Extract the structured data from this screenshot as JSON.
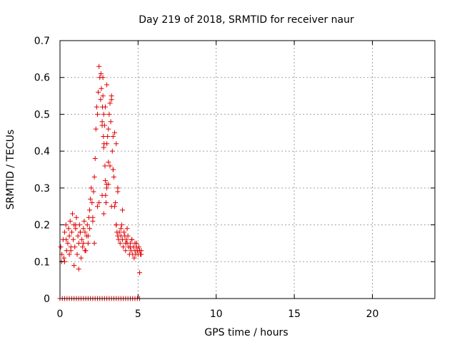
{
  "chart_data": {
    "type": "scatter",
    "title": "Day 219 of 2018, SRMTID for receiver naur",
    "xlabel": "GPS time / hours",
    "ylabel": "SRMTID / TECUs",
    "xlim": [
      0,
      24
    ],
    "ylim": [
      0,
      0.7
    ],
    "xticks": [
      0,
      5,
      10,
      15,
      20
    ],
    "xtick_labels": [
      "0",
      "5",
      "10",
      "15",
      "20"
    ],
    "yticks": [
      0,
      0.1,
      0.2,
      0.3,
      0.4,
      0.5,
      0.6,
      0.7
    ],
    "ytick_labels": [
      "0",
      "0.1",
      "0.2",
      "0.3",
      "0.4",
      "0.5",
      "0.6",
      "0.7"
    ],
    "grid": true,
    "marker": "plus",
    "marker_color": "#e00000",
    "series": [
      {
        "name": "SRMTID",
        "x": [
          0.05,
          0.12,
          0.2,
          0.25,
          0.3,
          0.38,
          0.42,
          0.5,
          0.55,
          0.6,
          0.65,
          0.7,
          0.75,
          0.8,
          0.85,
          0.9,
          0.95,
          1.0,
          1.05,
          1.1,
          1.15,
          1.2,
          1.25,
          1.3,
          1.35,
          1.4,
          1.45,
          1.5,
          1.55,
          1.6,
          1.65,
          1.7,
          1.75,
          1.8,
          1.85,
          1.9,
          1.95,
          2.0,
          2.05,
          2.1,
          2.15,
          2.2,
          2.25,
          2.3,
          2.35,
          2.4,
          2.45,
          2.5,
          2.55,
          2.6,
          2.62,
          2.65,
          2.7,
          2.72,
          2.75,
          2.78,
          2.8,
          2.82,
          2.85,
          2.88,
          2.9,
          2.92,
          2.95,
          2.98,
          3.0,
          3.05,
          3.1,
          3.15,
          3.2,
          3.25,
          3.3,
          3.35,
          3.4,
          3.45,
          3.5,
          3.55,
          3.6,
          3.65,
          3.7,
          3.75,
          3.8,
          3.85,
          3.9,
          3.95,
          4.0,
          4.05,
          4.1,
          4.15,
          4.2,
          4.25,
          4.3,
          4.35,
          4.4,
          4.45,
          4.5,
          4.55,
          4.6,
          4.65,
          4.7,
          4.75,
          4.8,
          4.85,
          4.9,
          4.95,
          5.0,
          5.05,
          5.1,
          5.15,
          5.2,
          0.3,
          0.6,
          0.9,
          1.2,
          1.5,
          1.8,
          2.1,
          2.4,
          2.7,
          3.0,
          3.3,
          3.6,
          3.9,
          4.2,
          4.5,
          4.8,
          5.1,
          0.1,
          0.4,
          0.7,
          1.0,
          1.3,
          1.6,
          1.9,
          2.2,
          2.5,
          2.8,
          3.1,
          3.4,
          3.7,
          4.0,
          4.3,
          4.6,
          4.9,
          5.2,
          2.75,
          3.0,
          3.3,
          3.5,
          2.9,
          3.6,
          3.1,
          2.7,
          3.4,
          3.7,
          2.8,
          3.2,
          0.0,
          0.15,
          0.3,
          0.45,
          0.6,
          0.75,
          0.9,
          1.05,
          1.2,
          1.35,
          1.5,
          1.65,
          1.8,
          1.95,
          2.1,
          2.25,
          2.4,
          2.55,
          2.7,
          2.85,
          3.0,
          3.15,
          3.3,
          3.45,
          3.6,
          3.75,
          3.9,
          4.05,
          4.2,
          4.35,
          4.5,
          4.65,
          4.8,
          4.95,
          5.1
        ],
        "y": [
          0.14,
          0.12,
          0.16,
          0.11,
          0.18,
          0.2,
          0.13,
          0.15,
          0.19,
          0.17,
          0.21,
          0.13,
          0.18,
          0.23,
          0.16,
          0.2,
          0.14,
          0.19,
          0.22,
          0.12,
          0.17,
          0.15,
          0.2,
          0.18,
          0.11,
          0.16,
          0.14,
          0.19,
          0.21,
          0.18,
          0.13,
          0.17,
          0.2,
          0.15,
          0.22,
          0.24,
          0.27,
          0.3,
          0.26,
          0.22,
          0.29,
          0.33,
          0.38,
          0.46,
          0.52,
          0.5,
          0.56,
          0.63,
          0.6,
          0.54,
          0.61,
          0.57,
          0.48,
          0.52,
          0.55,
          0.44,
          0.5,
          0.42,
          0.47,
          0.36,
          0.32,
          0.28,
          0.26,
          0.31,
          0.42,
          0.44,
          0.46,
          0.5,
          0.53,
          0.48,
          0.55,
          0.4,
          0.35,
          0.33,
          0.25,
          0.26,
          0.2,
          0.18,
          0.17,
          0.16,
          0.18,
          0.15,
          0.19,
          0.2,
          0.16,
          0.14,
          0.18,
          0.17,
          0.13,
          0.16,
          0.15,
          0.17,
          0.14,
          0.12,
          0.15,
          0.13,
          0.16,
          0.12,
          0.14,
          0.11,
          0.15,
          0.12,
          0.14,
          0.13,
          0.12,
          0.14,
          0.13,
          0.12,
          0.13,
          0.1,
          0.12,
          0.09,
          0.08,
          0.15,
          0.17,
          0.21,
          0.25,
          0.28,
          0.3,
          0.25,
          0.2,
          0.17,
          0.15,
          0.14,
          0.13,
          0.07,
          0.1,
          0.16,
          0.14,
          0.2,
          0.18,
          0.13,
          0.19,
          0.15,
          0.26,
          0.23,
          0.31,
          0.35,
          0.29,
          0.24,
          0.19,
          0.16,
          0.15,
          0.12,
          0.6,
          0.58,
          0.54,
          0.45,
          0.52,
          0.42,
          0.37,
          0.47,
          0.44,
          0.3,
          0.41,
          0.36,
          0,
          0,
          0,
          0,
          0,
          0,
          0,
          0,
          0,
          0,
          0,
          0,
          0,
          0,
          0,
          0,
          0,
          0,
          0,
          0,
          0,
          0,
          0,
          0,
          0,
          0,
          0,
          0,
          0,
          0,
          0,
          0,
          0,
          0,
          0
        ]
      }
    ]
  }
}
